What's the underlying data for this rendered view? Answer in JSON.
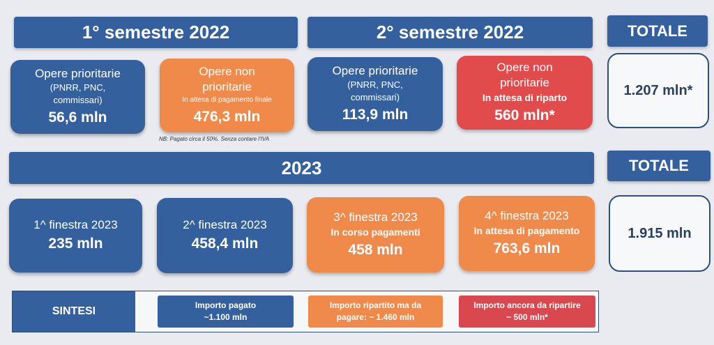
{
  "headers": {
    "sem1": "1° semestre 2022",
    "sem2": "2° semestre 2022",
    "year2023": "2023",
    "totale1": "TOTALE",
    "totale2": "TOTALE"
  },
  "sem1": {
    "prioritarie": {
      "title": "Opere prioritarie",
      "sub1": "(PNRR, PNC,",
      "sub2": "commissari)",
      "value": "56,6 mln"
    },
    "non_prioritarie": {
      "title1": "Opere non",
      "title2": "prioritarie",
      "status": "In attesa di pagamento finale",
      "value": "476,3 mln"
    },
    "note": "NB: Pagato circa il 50%. Senza contare l'IVA"
  },
  "sem2": {
    "prioritarie": {
      "title": "Opere prioritarie",
      "sub1": "(PNRR, PNC,",
      "sub2": "commissari)",
      "value": "113,9 mln"
    },
    "non_prioritarie": {
      "title1": "Opere non",
      "title2": "prioritarie",
      "status": "In attesa di riparto",
      "value": "560 mln*"
    }
  },
  "total_2022": "1.207 mln*",
  "finestre_2023": [
    {
      "title": "1^ finestra 2023",
      "status": "",
      "value": "235 mln"
    },
    {
      "title": "2^ finestra 2023",
      "status": "",
      "value": "458,4 mln"
    },
    {
      "title": "3^ finestra 2023",
      "status": "In corso pagamenti",
      "value": "458 mln"
    },
    {
      "title": "4^ finestra 2023",
      "status": "In attesa di pagamento",
      "value": "763,6 mln"
    }
  ],
  "total_2023": "1.915 mln",
  "sintesi": {
    "label": "SINTESI",
    "pagato": {
      "line1": "Importo pagato",
      "line2": "~1.100 mln"
    },
    "ripartito": {
      "line1": "Importo ripartito ma da",
      "line2": "pagare:  ~ 1.460 mln"
    },
    "da_ripartire": {
      "line1": "Importo ancora da ripartire",
      "line2": "~ 500 mln*"
    }
  },
  "colors": {
    "blue": "#34619d",
    "orange": "#f08a4b",
    "red": "#e24b4b",
    "background": "#e9ebf0"
  }
}
